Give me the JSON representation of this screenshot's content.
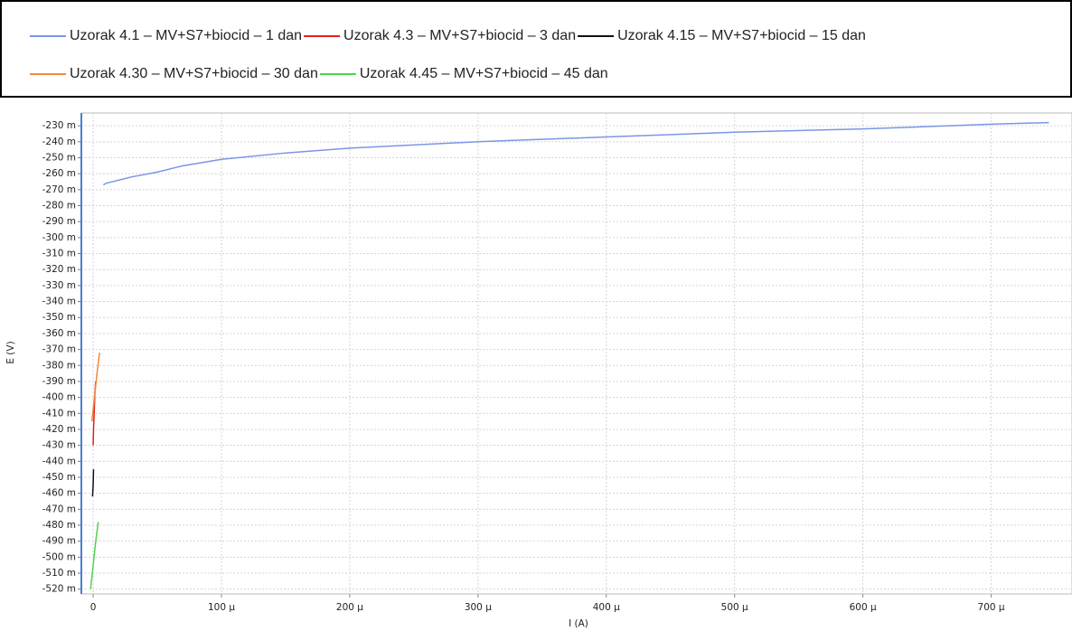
{
  "chart_data": {
    "type": "line",
    "xlabel": "I (A)",
    "ylabel": "E (V)",
    "xlim": [
      -9.2e-06,
      0.000763
    ],
    "ylim": [
      -0.523,
      -0.222
    ],
    "grid": true,
    "xticks": [
      0,
      {
        "value": 0.0001,
        "label": "100 µ"
      },
      {
        "value": 0.0002,
        "label": "200 µ"
      },
      {
        "value": 0.0003,
        "label": "300 µ"
      },
      {
        "value": 0.0004,
        "label": "400 µ"
      },
      {
        "value": 0.0005,
        "label": "500 µ"
      },
      {
        "value": 0.0006,
        "label": "600 µ"
      },
      {
        "value": 0.0007,
        "label": "700 µ"
      }
    ],
    "yticks": [
      {
        "value": -0.23,
        "label": "-230 m"
      },
      {
        "value": -0.24,
        "label": "-240 m"
      },
      {
        "value": -0.25,
        "label": "-250 m"
      },
      {
        "value": -0.26,
        "label": "-260 m"
      },
      {
        "value": -0.27,
        "label": "-270 m"
      },
      {
        "value": -0.28,
        "label": "-280 m"
      },
      {
        "value": -0.29,
        "label": "-290 m"
      },
      {
        "value": -0.3,
        "label": "-300 m"
      },
      {
        "value": -0.31,
        "label": "-310 m"
      },
      {
        "value": -0.32,
        "label": "-320 m"
      },
      {
        "value": -0.33,
        "label": "-330 m"
      },
      {
        "value": -0.34,
        "label": "-340 m"
      },
      {
        "value": -0.35,
        "label": "-350 m"
      },
      {
        "value": -0.36,
        "label": "-360 m"
      },
      {
        "value": -0.37,
        "label": "-370 m"
      },
      {
        "value": -0.38,
        "label": "-380 m"
      },
      {
        "value": -0.39,
        "label": "-390 m"
      },
      {
        "value": -0.4,
        "label": "-400 m"
      },
      {
        "value": -0.41,
        "label": "-410 m"
      },
      {
        "value": -0.42,
        "label": "-420 m"
      },
      {
        "value": -0.43,
        "label": "-430 m"
      },
      {
        "value": -0.44,
        "label": "-440 m"
      },
      {
        "value": -0.45,
        "label": "-450 m"
      },
      {
        "value": -0.46,
        "label": "-460 m"
      },
      {
        "value": -0.47,
        "label": "-470 m"
      },
      {
        "value": -0.48,
        "label": "-480 m"
      },
      {
        "value": -0.49,
        "label": "-490 m"
      },
      {
        "value": -0.5,
        "label": "-500 m"
      },
      {
        "value": -0.51,
        "label": "-510 m"
      },
      {
        "value": -0.52,
        "label": "-520 m"
      }
    ],
    "series": [
      {
        "name": "Uzorak 4.1 – MV+S7+biocid – 1 dan",
        "color": "#7a96e6",
        "x": [
          8e-06,
          1e-05,
          2e-05,
          3e-05,
          5e-05,
          7e-05,
          0.0001,
          0.00015,
          0.0002,
          0.0003,
          0.0004,
          0.0005,
          0.0006,
          0.0007,
          0.000745
        ],
        "values": [
          -0.267,
          -0.266,
          -0.264,
          -0.262,
          -0.259,
          -0.255,
          -0.251,
          -0.247,
          -0.244,
          -0.24,
          -0.237,
          -0.234,
          -0.232,
          -0.229,
          -0.228
        ]
      },
      {
        "name": "Uzorak 4.3 – MV+S7+biocid – 3 dan",
        "color": "#e02020",
        "x": [
          0,
          3e-07,
          1e-06,
          1.5e-06,
          2e-06
        ],
        "values": [
          -0.43,
          -0.42,
          -0.405,
          -0.395,
          -0.39
        ]
      },
      {
        "name": "Uzorak 4.15 – MV+S7+biocid – 15 dan",
        "color": "#111111",
        "x": [
          -5e-07,
          0,
          3e-07
        ],
        "values": [
          -0.462,
          -0.455,
          -0.445
        ]
      },
      {
        "name": "Uzorak 4.30 – MV+S7+biocid – 30 dan",
        "color": "#f08a3c",
        "x": [
          -1e-06,
          1e-06,
          3e-06,
          5e-06
        ],
        "values": [
          -0.415,
          -0.4,
          -0.385,
          -0.372
        ]
      },
      {
        "name": "Uzorak 4.45 – MV+S7+biocid – 45 dan",
        "color": "#4cd44c",
        "x": [
          -2e-06,
          0,
          2e-06,
          4e-06
        ],
        "values": [
          -0.52,
          -0.505,
          -0.49,
          -0.478
        ]
      }
    ]
  }
}
